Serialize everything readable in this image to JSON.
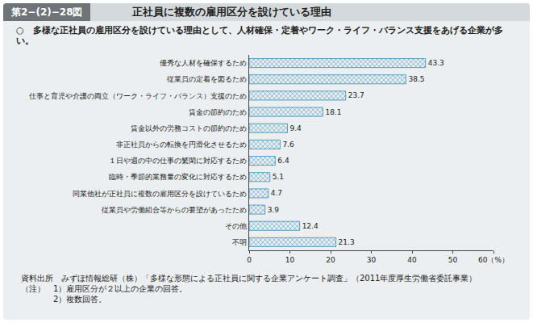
{
  "chart_data": {
    "type": "bar",
    "orientation": "horizontal",
    "figure_number": "第2−(2)−28図",
    "title": "正社員に複数の雇用区分を設けている理由",
    "subtitle": "○　多様な正社員の雇用区分を設けている理由として、人材確保・定着やワーク・ライフ・バランス支援をあげる企業が多い。",
    "source": "資料出所　みずほ情報総研（株）「多様な形態による正社員に関する企業アンケート調査」（2011年度厚生労働省委託事業）",
    "notes": [
      "（注）　1）雇用区分が２以上の企業の回答。",
      "　　　　2）複数回答。"
    ],
    "categories": [
      "優秀な人材を確保するため",
      "従業員の定着を図るため",
      "仕事と育児や介護の両立（ワーク・ライフ・バランス）支援のため",
      "賃金の節約のため",
      "賃金以外の労務コストの節約のため",
      "非正社員からの転換を円滑化させるため",
      "１日や週の中の仕事の繁閑に対応するため",
      "臨時・季節的業務量の変化に対応するため",
      "同業他社が正社員に複数の雇用区分を設けているため",
      "従業員や労働組合等からの要望があったため",
      "その他",
      "不明"
    ],
    "values": [
      43.3,
      38.5,
      23.7,
      18.1,
      9.4,
      7.6,
      6.4,
      5.1,
      4.7,
      3.9,
      12.4,
      21.3
    ],
    "color": "#8fd0ea",
    "xlim": [
      0,
      60
    ],
    "xticks": [
      0,
      10,
      20,
      30,
      40,
      50,
      {
        "value": 60,
        "label": "60（%）"
      }
    ],
    "grid": false,
    "data_labels": true
  }
}
